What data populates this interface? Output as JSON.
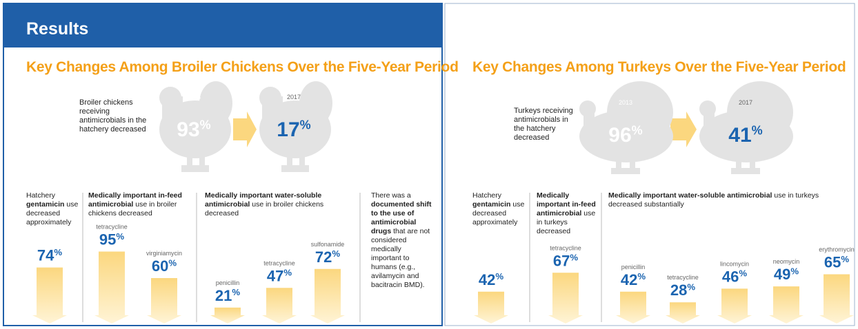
{
  "header": {
    "title": "Results"
  },
  "panels": [
    {
      "title": "Key Changes Among Broiler Chickens Over the Five-Year Period",
      "intro": "Broiler chickens receiving antimicrobials in the hatchery decreased",
      "before": {
        "year": "2013",
        "value": 93,
        "unit": "%"
      },
      "after": {
        "year": "2017",
        "value": 17,
        "unit": "%"
      },
      "columns": [
        {
          "runs": [
            {
              "text": "Hatchery "
            },
            {
              "text": "gentamicin",
              "bold": true
            },
            {
              "text": " use decreased approximately"
            }
          ],
          "stats": [
            {
              "value": 74,
              "unit": "%"
            }
          ]
        },
        {
          "runs": [
            {
              "text": "Medically important in-feed antimicrobial",
              "bold": true
            },
            {
              "text": " use in broiler chickens decreased"
            }
          ],
          "stats": [
            {
              "label": "tetracycline",
              "value": 95,
              "unit": "%"
            },
            {
              "label": "virginiamycin",
              "value": 60,
              "unit": "%"
            }
          ]
        },
        {
          "runs": [
            {
              "text": "Medically important water-soluble antimicrobial",
              "bold": true
            },
            {
              "text": " use in broiler chickens decreased"
            }
          ],
          "stats": [
            {
              "label": "penicillin",
              "value": 21,
              "unit": "%"
            },
            {
              "label": "tetracycline",
              "value": 47,
              "unit": "%"
            },
            {
              "label": "sulfonamide",
              "value": 72,
              "unit": "%"
            }
          ]
        },
        {
          "runs": [
            {
              "text": "There was a "
            },
            {
              "text": "documented shift to the use of antimicrobial drugs",
              "bold": true
            },
            {
              "text": " that are not considered medically important to humans (e.g., avilamycin and bacitracin BMD)."
            }
          ]
        }
      ]
    },
    {
      "title": "Key Changes Among Turkeys Over the Five-Year Period",
      "intro": "Turkeys receiving antimicrobials in the hatchery decreased",
      "before": {
        "year": "2013",
        "value": 96,
        "unit": "%"
      },
      "after": {
        "year": "2017",
        "value": 41,
        "unit": "%"
      },
      "columns": [
        {
          "runs": [
            {
              "text": "Hatchery "
            },
            {
              "text": "gentamicin",
              "bold": true
            },
            {
              "text": " use decreased approximately"
            }
          ],
          "stats": [
            {
              "value": 42,
              "unit": "%"
            }
          ]
        },
        {
          "runs": [
            {
              "text": "Medically important in-feed antimicrobial",
              "bold": true
            },
            {
              "text": " use in turkeys decreased"
            }
          ],
          "stats": [
            {
              "label": "tetracycline",
              "value": 67,
              "unit": "%"
            }
          ]
        },
        {
          "runs": [
            {
              "text": "Medically important water-soluble antimicrobial",
              "bold": true
            },
            {
              "text": " use in turkeys decreased substantially"
            }
          ],
          "stats": [
            {
              "label": "penicillin",
              "value": 42,
              "unit": "%"
            },
            {
              "label": "tetracycline",
              "value": 28,
              "unit": "%"
            },
            {
              "label": "lincomycin",
              "value": 46,
              "unit": "%"
            },
            {
              "label": "neomycin",
              "value": 49,
              "unit": "%"
            },
            {
              "label": "erythromycin",
              "value": 65,
              "unit": "%"
            }
          ]
        }
      ]
    }
  ]
}
